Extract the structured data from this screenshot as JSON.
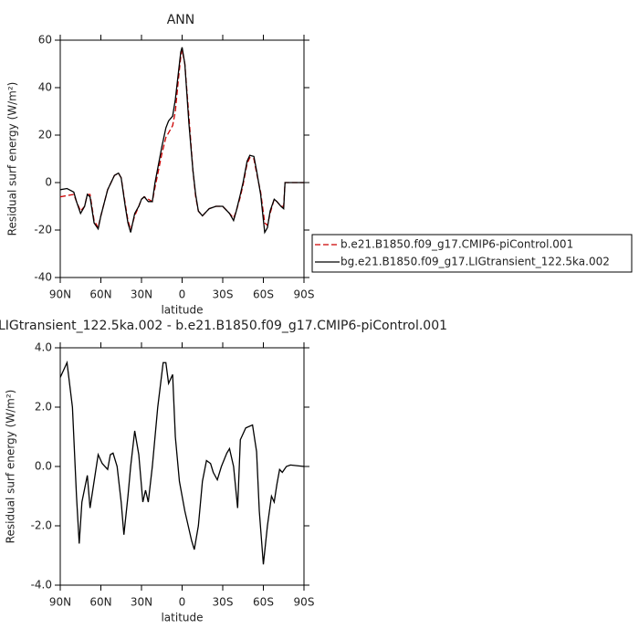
{
  "chart_data": [
    {
      "type": "line",
      "title": "ANN",
      "xlabel": "latitude",
      "ylabel": "Residual surf energy (W/m²)",
      "x": [
        90,
        85,
        80,
        78,
        75,
        72,
        70,
        68,
        65,
        62,
        60,
        55,
        50,
        47,
        45,
        42,
        40,
        38,
        35,
        32,
        30,
        28,
        25,
        22,
        20,
        15,
        12,
        10,
        7,
        5,
        3,
        1,
        0,
        -2,
        -5,
        -8,
        -10,
        -12,
        -15,
        -20,
        -25,
        -30,
        -35,
        -38,
        -40,
        -43,
        -45,
        -48,
        -50,
        -53,
        -55,
        -58,
        -61,
        -63,
        -65,
        -68,
        -70,
        -73,
        -75,
        -76,
        -80,
        -90
      ],
      "series": [
        {
          "name": "b.e21.B1850.f09_g17.CMIP6-piControl.001",
          "color": "#cc0000",
          "dashed": true,
          "values": [
            -6,
            -5.5,
            -5,
            -8,
            -12,
            -10,
            -5,
            -5,
            -16,
            -19,
            -14,
            -3,
            3,
            4,
            2,
            -9,
            -16,
            -20,
            -14,
            -10,
            -7,
            -6,
            -7,
            -8,
            -2,
            12,
            19,
            21,
            24,
            30,
            42,
            53,
            56,
            50,
            28,
            5,
            -6,
            -12,
            -14,
            -11,
            -10,
            -10,
            -13,
            -15,
            -12,
            -6,
            -1,
            8,
            10.5,
            10,
            4,
            -4,
            -17,
            -18,
            -13,
            -7,
            -8,
            -10,
            -10,
            0,
            0,
            0
          ]
        },
        {
          "name": "bg.e21.B1850.f09_g17.LIGtransient_122.5ka.002",
          "color": "#000000",
          "dashed": false,
          "values": [
            -3,
            -2.5,
            -4,
            -8,
            -13,
            -10,
            -5,
            -6,
            -17,
            -19.5,
            -14,
            -3,
            3,
            4,
            2,
            -10,
            -17,
            -21,
            -13,
            -10,
            -7,
            -6,
            -8,
            -8,
            0,
            15,
            23,
            26,
            28,
            35,
            45,
            55,
            57,
            50,
            25,
            5,
            -5,
            -12,
            -14,
            -11,
            -10,
            -10,
            -13,
            -16,
            -12,
            -5,
            0,
            9,
            11.5,
            11,
            5,
            -5,
            -21,
            -19,
            -12,
            -7,
            -8,
            -10,
            -11,
            0,
            0,
            0
          ]
        }
      ],
      "xlim": [
        90,
        -90
      ],
      "xticks": [
        {
          "value": 90,
          "label": "90N"
        },
        {
          "value": 60,
          "label": "60N"
        },
        {
          "value": 30,
          "label": "30N"
        },
        0,
        {
          "value": -30,
          "label": "30S"
        },
        {
          "value": -60,
          "label": "60S"
        },
        {
          "value": -90,
          "label": "90S"
        }
      ],
      "ylim": [
        -40,
        60
      ],
      "yticks": [
        -40,
        -20,
        0,
        20,
        40,
        60
      ],
      "legend": "right"
    },
    {
      "type": "line",
      "title": "LIGtransient_122.5ka.002 - b.e21.B1850.f09_g17.CMIP6-piControl.001",
      "xlabel": "latitude",
      "ylabel": "Residual surf energy (W/m²)",
      "x": [
        90,
        85,
        81,
        78,
        76,
        74,
        70,
        68,
        64,
        62,
        59,
        55,
        53,
        51,
        48,
        45,
        43,
        40,
        38,
        35,
        32,
        29,
        27,
        25,
        22,
        18,
        14,
        12,
        10,
        7,
        5,
        2,
        -2,
        -7,
        -9,
        -12,
        -15,
        -18,
        -21,
        -23,
        -26,
        -29,
        -33,
        -35,
        -38,
        -41,
        -43,
        -47,
        -52,
        -55,
        -57,
        -60,
        -63,
        -66,
        -68,
        -70,
        -72,
        -74,
        -77,
        -80,
        -90
      ],
      "series": [
        {
          "color": "#000000",
          "dashed": false,
          "values": [
            3.0,
            3.5,
            2.0,
            -1.0,
            -2.6,
            -1.2,
            -0.3,
            -1.4,
            -0.2,
            0.4,
            0.1,
            -0.1,
            0.4,
            0.45,
            0,
            -1.2,
            -2.3,
            -1.0,
            0,
            1.2,
            0.4,
            -1.2,
            -0.8,
            -1.2,
            0,
            2.0,
            3.5,
            3.5,
            2.8,
            3.1,
            1.0,
            -0.5,
            -1.5,
            -2.5,
            -2.8,
            -2.0,
            -0.5,
            0.2,
            0.1,
            -0.2,
            -0.45,
            0,
            0.45,
            0.6,
            0,
            -1.4,
            0.9,
            1.3,
            1.4,
            0.5,
            -1.5,
            -3.3,
            -2.0,
            -1.0,
            -1.2,
            -0.6,
            -0.1,
            -0.2,
            0,
            0.05,
            0
          ]
        }
      ],
      "xlim": [
        90,
        -90
      ],
      "xticks": [
        {
          "value": 90,
          "label": "90N"
        },
        {
          "value": 60,
          "label": "60N"
        },
        {
          "value": 30,
          "label": "30N"
        },
        0,
        {
          "value": -30,
          "label": "30S"
        },
        {
          "value": -60,
          "label": "60S"
        },
        {
          "value": -90,
          "label": "90S"
        }
      ],
      "ylim": [
        -4,
        4
      ],
      "yticks": [
        {
          "value": -4,
          "label": "-4.0"
        },
        {
          "value": -2,
          "label": "-2.0"
        },
        {
          "value": 0,
          "label": "0.0"
        },
        {
          "value": 2,
          "label": "2.0"
        },
        {
          "value": 4,
          "label": "4.0"
        }
      ]
    }
  ]
}
